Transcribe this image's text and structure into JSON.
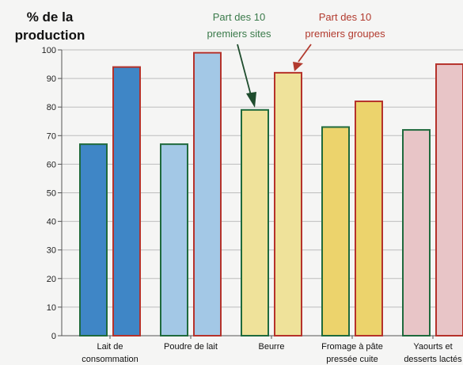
{
  "chart_data": {
    "type": "bar",
    "ylabel_lines": [
      "% de la",
      "production"
    ],
    "ylim": [
      0,
      100
    ],
    "yticks": [
      "0",
      "10",
      "20",
      "30",
      "40",
      "50",
      "60",
      "70",
      "80",
      "90",
      "100"
    ],
    "grid": true,
    "categories": [
      [
        "Lait de",
        "consommation"
      ],
      [
        "Poudre de lait"
      ],
      [
        "Beurre"
      ],
      [
        "Fromage à pâte",
        "pressée cuite"
      ],
      [
        "Yaourts et",
        "desserts lactés"
      ]
    ],
    "series": [
      {
        "name": "Part des 10 premiers sites",
        "values": [
          67,
          67,
          79,
          73,
          72
        ]
      },
      {
        "name": "Part des 10 premiers groupes",
        "values": [
          94,
          99,
          92,
          82,
          95
        ]
      }
    ],
    "annotations": [
      {
        "lines": [
          "Part des 10",
          "premiers sites"
        ],
        "color": "#3a7a4a"
      },
      {
        "lines": [
          "Part des 10",
          "premiers groupes"
        ],
        "color": "#b23a2e"
      }
    ],
    "category_colors": [
      "#3f86c6",
      "#a3c8e6",
      "#efe29a",
      "#ecd36c",
      "#e8c5c7"
    ],
    "series_border_colors": [
      "#1f6a3d",
      "#b5322b"
    ]
  }
}
